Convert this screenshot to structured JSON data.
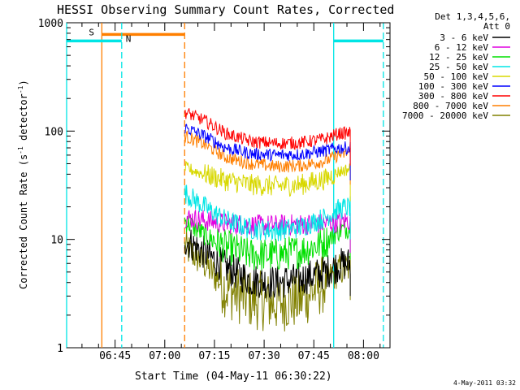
{
  "chart_data": {
    "type": "line",
    "title": "HESSI Observing Summary Count Rates, Corrected",
    "xlabel": "Start Time (04-May-11 06:30:22)",
    "ylabel": "Corrected Count Rate (s⁻¹ detector⁻¹)",
    "ylabel_main": "Corrected Count Rate (s",
    "ylabel_sup1": "-1",
    "ylabel_mid": " detector",
    "ylabel_sup2": "-1",
    "ylabel_end": ")",
    "yscale": "log",
    "ylim": [
      1,
      1000
    ],
    "xlim": [
      "06:30:22",
      "08:08:00"
    ],
    "x_ticks": [
      "06:45",
      "07:00",
      "07:15",
      "07:30",
      "07:45",
      "08:00"
    ],
    "y_ticks": [
      "1",
      "10",
      "100",
      "1000"
    ],
    "grid": false,
    "legend_position": "top-right",
    "legend_header": [
      "Det 1,3,4,5,6,",
      "Att 0"
    ],
    "timestamp": "4-May-2011 03:32",
    "data_interval": {
      "start": "07:06",
      "end": "07:56"
    },
    "series": [
      {
        "name": "3 - 6 keV",
        "color": "#000000",
        "values": [
          [
            0,
            10
          ],
          [
            0.12,
            7.5
          ],
          [
            0.25,
            5.5
          ],
          [
            0.4,
            4.2
          ],
          [
            0.55,
            4.0
          ],
          [
            0.7,
            4.3
          ],
          [
            0.85,
            5.0
          ],
          [
            0.93,
            5.8
          ],
          [
            1,
            6.0
          ]
        ]
      },
      {
        "name": "6 - 12 keV",
        "color": "#e000e0",
        "values": [
          [
            0,
            16
          ],
          [
            0.12,
            15
          ],
          [
            0.25,
            14
          ],
          [
            0.4,
            13.5
          ],
          [
            0.55,
            13.5
          ],
          [
            0.7,
            13.8
          ],
          [
            0.85,
            14
          ],
          [
            0.93,
            14.5
          ],
          [
            1,
            15
          ]
        ]
      },
      {
        "name": "12 - 25 keV",
        "color": "#00e000",
        "values": [
          [
            0,
            15
          ],
          [
            0.12,
            11
          ],
          [
            0.25,
            8.5
          ],
          [
            0.4,
            7.2
          ],
          [
            0.55,
            7.2
          ],
          [
            0.7,
            7.8
          ],
          [
            0.85,
            9.5
          ],
          [
            0.93,
            12
          ],
          [
            1,
            13
          ]
        ]
      },
      {
        "name": "25 - 50 keV",
        "color": "#00e5e5",
        "values": [
          [
            0,
            27
          ],
          [
            0.12,
            20
          ],
          [
            0.25,
            15
          ],
          [
            0.4,
            12.5
          ],
          [
            0.55,
            12
          ],
          [
            0.7,
            13
          ],
          [
            0.85,
            16
          ],
          [
            0.93,
            19
          ],
          [
            1,
            20
          ]
        ]
      },
      {
        "name": "50 - 100 keV",
        "color": "#d8d800",
        "values": [
          [
            0,
            46
          ],
          [
            0.12,
            40
          ],
          [
            0.25,
            35
          ],
          [
            0.4,
            32
          ],
          [
            0.55,
            31
          ],
          [
            0.7,
            32
          ],
          [
            0.85,
            36
          ],
          [
            0.93,
            42
          ],
          [
            1,
            45
          ]
        ]
      },
      {
        "name": "100 - 300 keV",
        "color": "#0000ff",
        "values": [
          [
            0,
            108
          ],
          [
            0.12,
            90
          ],
          [
            0.25,
            70
          ],
          [
            0.4,
            62
          ],
          [
            0.55,
            60
          ],
          [
            0.7,
            61
          ],
          [
            0.85,
            66
          ],
          [
            0.93,
            70
          ],
          [
            1,
            70
          ]
        ]
      },
      {
        "name": "300 - 800 keV",
        "color": "#ff0000",
        "values": [
          [
            0,
            150
          ],
          [
            0.12,
            125
          ],
          [
            0.25,
            95
          ],
          [
            0.4,
            80
          ],
          [
            0.55,
            77
          ],
          [
            0.7,
            78
          ],
          [
            0.85,
            85
          ],
          [
            0.93,
            95
          ],
          [
            1,
            96
          ]
        ]
      },
      {
        "name": "800 - 7000 keV",
        "color": "#ff7f00",
        "values": [
          [
            0,
            90
          ],
          [
            0.12,
            75
          ],
          [
            0.25,
            57
          ],
          [
            0.4,
            50
          ],
          [
            0.55,
            47
          ],
          [
            0.7,
            48
          ],
          [
            0.85,
            53
          ],
          [
            0.93,
            60
          ],
          [
            1,
            64
          ]
        ]
      },
      {
        "name": "7000 - 20000 keV",
        "color": "#808000",
        "values": [
          [
            0,
            8.5
          ],
          [
            0.12,
            6
          ],
          [
            0.25,
            3.5
          ],
          [
            0.4,
            2.8
          ],
          [
            0.55,
            2.6
          ],
          [
            0.7,
            2.8
          ],
          [
            0.85,
            4
          ],
          [
            0.93,
            5.2
          ],
          [
            1,
            5.5
          ]
        ]
      }
    ],
    "markers": {
      "saa": {
        "label": "S",
        "color": "#ff7f00",
        "start": "06:41",
        "end": "07:06",
        "level": 780
      },
      "night": [
        {
          "label": "N",
          "color": "#00e5e5",
          "start": "06:30:22",
          "end": "06:47",
          "level": 680
        },
        {
          "label": "",
          "color": "#00e5e5",
          "start": "07:51",
          "end": "08:06",
          "level": 680
        }
      ]
    }
  }
}
